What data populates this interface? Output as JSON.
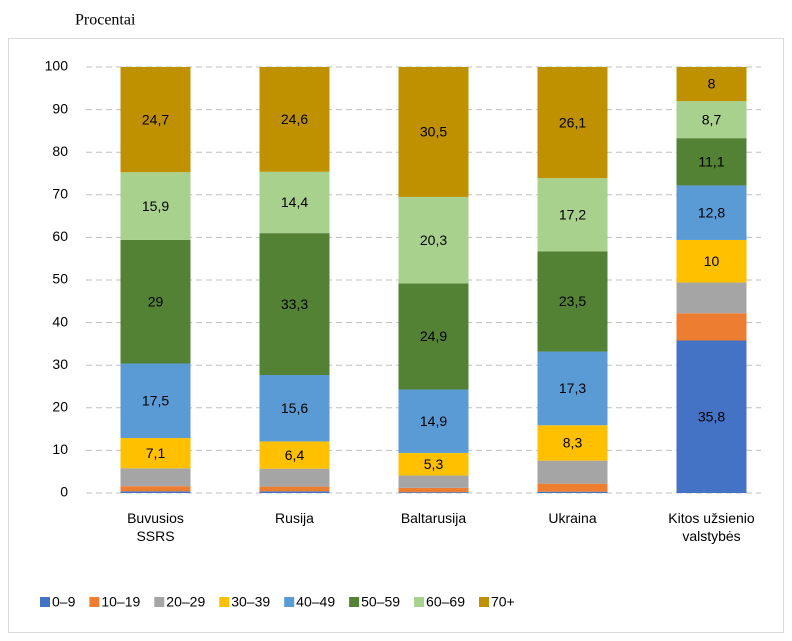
{
  "chart_data": {
    "type": "stacked_bar",
    "title": "Procentai",
    "categories": [
      "Buvusios\nSSRS",
      "Rusija",
      "Baltarusija",
      "Ukraina",
      "Kitos užsienio\nvalstybės"
    ],
    "ylim": [
      0,
      100
    ],
    "yticks": [
      0,
      10,
      20,
      30,
      40,
      50,
      60,
      70,
      80,
      90,
      100
    ],
    "grid": true,
    "legend": "bottom",
    "series": [
      {
        "name": "0–9",
        "color": "#4472c4",
        "values": [
          0.4,
          0.4,
          0.2,
          0.3,
          35.8
        ],
        "value_labels": [
          null,
          null,
          null,
          null,
          "35,8"
        ]
      },
      {
        "name": "10–19",
        "color": "#ed7d31",
        "values": [
          1.2,
          1.1,
          1.0,
          1.9,
          6.4
        ],
        "value_labels": [
          null,
          null,
          null,
          null,
          null
        ]
      },
      {
        "name": "20–29",
        "color": "#a5a5a5",
        "values": [
          4.2,
          4.2,
          2.9,
          5.4,
          7.2
        ],
        "value_labels": [
          null,
          null,
          null,
          null,
          null
        ]
      },
      {
        "name": "30–39",
        "color": "#ffc000",
        "values": [
          7.1,
          6.4,
          5.3,
          8.3,
          10
        ],
        "value_labels": [
          "7,1",
          "6,4",
          "5,3",
          "8,3",
          "10"
        ]
      },
      {
        "name": "40–49",
        "color": "#5b9bd5",
        "values": [
          17.5,
          15.6,
          14.9,
          17.3,
          12.8
        ],
        "value_labels": [
          "17,5",
          "15,6",
          "14,9",
          "17,3",
          "12,8"
        ]
      },
      {
        "name": "50–59",
        "color": "#548235",
        "values": [
          29,
          33.3,
          24.9,
          23.5,
          11.1
        ],
        "value_labels": [
          "29",
          "33,3",
          "24,9",
          "23,5",
          "11,1"
        ]
      },
      {
        "name": "60–69",
        "color": "#a9d18e",
        "values": [
          15.9,
          14.4,
          20.3,
          17.2,
          8.7
        ],
        "value_labels": [
          "15,9",
          "14,4",
          "20,3",
          "17,2",
          "8,7"
        ]
      },
      {
        "name": "70+",
        "color": "#bf9000",
        "values": [
          24.7,
          24.6,
          30.5,
          26.1,
          8
        ],
        "value_labels": [
          "24,7",
          "24,6",
          "30,5",
          "26,1",
          "8"
        ]
      }
    ]
  }
}
